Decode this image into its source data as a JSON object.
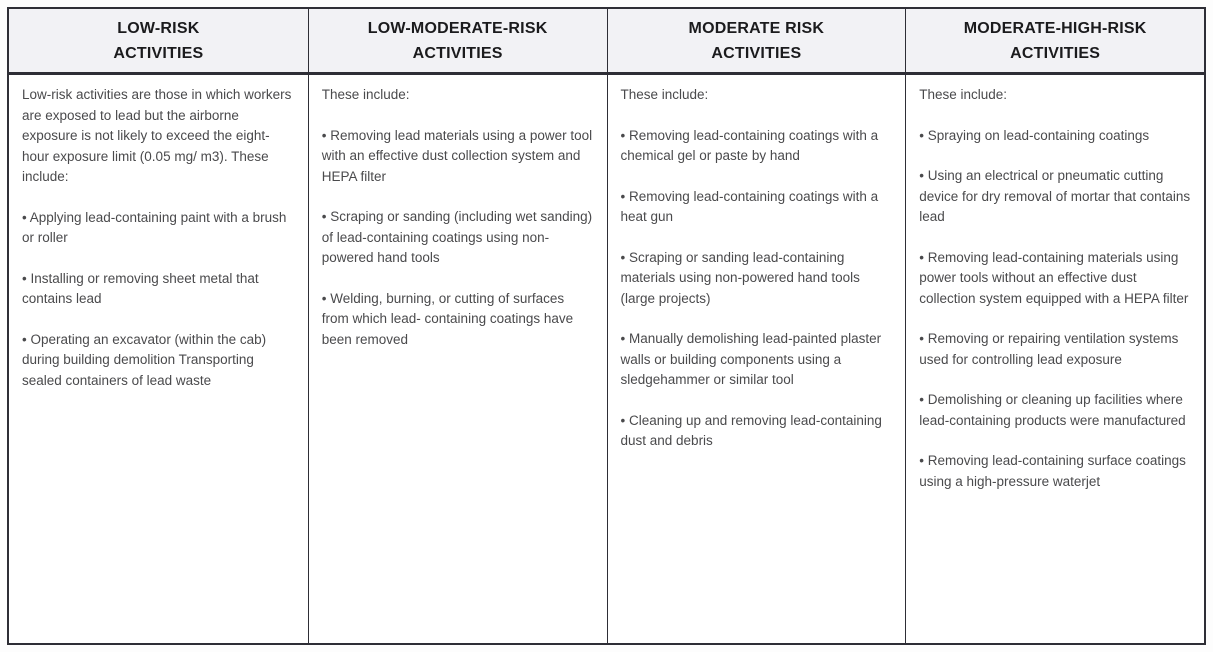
{
  "colors": {
    "border": "#2e2e36",
    "header_background": "#f2f2f5",
    "header_text": "#1b1b1d",
    "body_text": "#4a4a4c"
  },
  "table": {
    "columns": [
      {
        "header_line1": "LOW-RISK",
        "header_line2": "ACTIVITIES",
        "paragraphs": [
          "Low-risk activities are those in which workers are exposed to lead but the airborne exposure is not likely to exceed the eight-hour exposure limit (0.05 mg/ m3). These include:",
          "• Applying lead-containing paint with a brush or roller",
          "• Installing or removing sheet metal that contains lead",
          "• Operating an excavator (within the cab) during building demolition Transporting sealed containers of lead waste"
        ]
      },
      {
        "header_line1": "LOW-MODERATE-RISK",
        "header_line2": "ACTIVITIES",
        "paragraphs": [
          "These include:",
          "• Removing lead materials using a power tool with an effective dust collection system and HEPA filter",
          "• Scraping or sanding (including wet sanding) of lead-containing coatings using non-powered hand tools",
          "• Welding, burning, or cutting of surfaces from which lead- containing coatings have been removed"
        ]
      },
      {
        "header_line1": "MODERATE RISK",
        "header_line2": "ACTIVITIES",
        "paragraphs": [
          "These include:",
          "• Removing lead-containing coatings with a chemical gel or paste by hand",
          "• Removing lead-containing coatings with a heat gun",
          "• Scraping or sanding lead-containing materials using non-powered hand tools (large projects)",
          "• Manually demolishing lead-painted plaster walls or building components using a sledgehammer or similar tool",
          "• Cleaning up and removing lead-containing dust and debris"
        ]
      },
      {
        "header_line1": "MODERATE-HIGH-RISK",
        "header_line2": "ACTIVITIES",
        "paragraphs": [
          "These include:",
          "• Spraying on lead-containing coatings",
          "• Using an electrical or pneumatic cutting device for dry removal of mortar that contains lead",
          "• Removing lead-containing materials using power tools without an effective dust collection system equipped with a HEPA filter",
          "• Removing or repairing ventilation systems used for controlling lead exposure",
          "• Demolishing or cleaning up facilities where lead-containing products were manufactured",
          "• Removing lead-containing surface coatings using a high-pressure waterjet"
        ]
      }
    ]
  }
}
